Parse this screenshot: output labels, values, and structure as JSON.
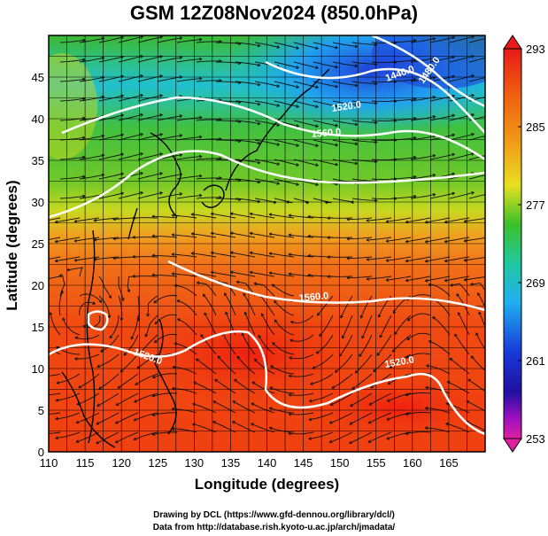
{
  "title": "GSM 12Z08Nov2024 (850.0hPa)",
  "xlabel": "Longitude (degrees)",
  "ylabel": "Latitude  (degrees)",
  "credit_line1": "Drawing by DCL (https://www.gfd-dennou.org/library/dcl/)",
  "credit_line2": "Data from http://database.rish.kyoto-u.ac.jp/arch/jmadata/",
  "map": {
    "lon_range": [
      110,
      170
    ],
    "lat_range": [
      0,
      50
    ],
    "lon_ticks": [
      "110",
      "115",
      "120",
      "125",
      "130",
      "135",
      "140",
      "145",
      "150",
      "155",
      "160",
      "165"
    ],
    "lat_ticks": [
      "0",
      "5",
      "10",
      "15",
      "20",
      "25",
      "30",
      "35",
      "40",
      "45"
    ]
  },
  "colorbar": {
    "labels": [
      "293",
      "285",
      "277",
      "269",
      "261",
      "253"
    ],
    "colors": [
      "#e81a1a",
      "#f06010",
      "#f0a018",
      "#f0e020",
      "#3cc028",
      "#20c8a0",
      "#20b0f0",
      "#1838d8",
      "#2010a0",
      "#a010c0",
      "#e020a0"
    ]
  },
  "contours": [
    {
      "label": "1440.0"
    },
    {
      "label": "1480.0"
    },
    {
      "label": "1520.0"
    },
    {
      "label": "1560.0"
    },
    {
      "label": "1560.0"
    },
    {
      "label": "1520.0"
    },
    {
      "label": "1520.0"
    }
  ]
}
